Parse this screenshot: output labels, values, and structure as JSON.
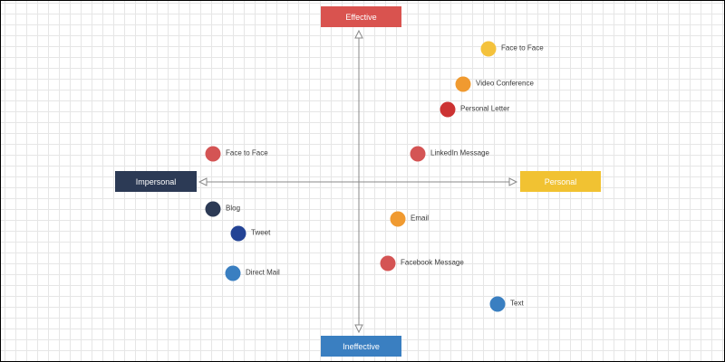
{
  "quadrant": {
    "top_label": "Effective",
    "bottom_label": "Ineffective",
    "left_label": "Impersonal",
    "right_label": "Personal",
    "colors": {
      "top": "#d9534f",
      "bottom": "#3a7fc1",
      "left": "#2c3a55",
      "right": "#f1c232",
      "axis": "#888888"
    }
  },
  "points": [
    {
      "label": "Face to Face",
      "color": "#f4c23c"
    },
    {
      "label": "Video Conference",
      "color": "#f09a30"
    },
    {
      "label": "Personal Letter",
      "color": "#cc3333"
    },
    {
      "label": "LinkedIn Message",
      "color": "#d45454"
    },
    {
      "label": "Face to Face",
      "color": "#d45454"
    },
    {
      "label": "Blog",
      "color": "#2c3a55"
    },
    {
      "label": "Tweet",
      "color": "#234395"
    },
    {
      "label": "Direct Mail",
      "color": "#3a7fc1"
    },
    {
      "label": "Email",
      "color": "#f09a30"
    },
    {
      "label": "Facebook Message",
      "color": "#d45454"
    },
    {
      "label": "Text",
      "color": "#3a7fc1"
    }
  ]
}
